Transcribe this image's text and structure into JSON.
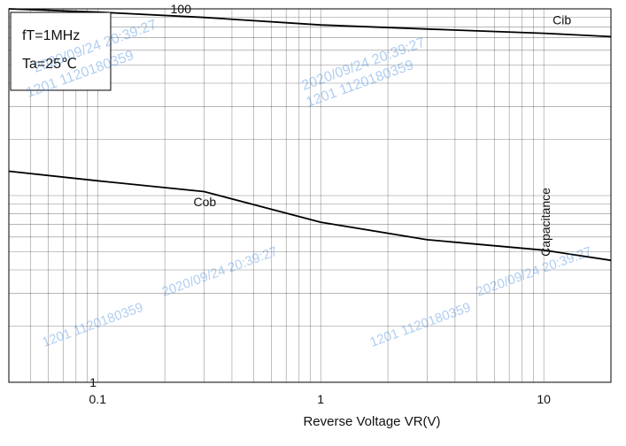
{
  "chart_data": {
    "type": "line",
    "title": "",
    "conditions": [
      "fT=1MHz",
      "Ta=25℃"
    ],
    "xlabel": "Reverse Voltage  VR(V)",
    "ylabel": "Capacitance",
    "xscale": "log",
    "yscale": "log",
    "xlim": [
      0.04,
      20
    ],
    "ylim": [
      1,
      100
    ],
    "x_ticks": [
      "0.1",
      "1",
      "10"
    ],
    "y_ticks": [
      "1",
      "100"
    ],
    "grid": true,
    "series": [
      {
        "name": "Cib",
        "x": [
          0.04,
          0.1,
          0.3,
          1,
          3,
          10,
          20
        ],
        "y": [
          100,
          96,
          90,
          82,
          78,
          74,
          71
        ]
      },
      {
        "name": "Cob",
        "x": [
          0.04,
          0.1,
          0.3,
          1,
          3,
          10,
          20
        ],
        "y": [
          13.5,
          12,
          10.5,
          7.2,
          5.8,
          5.1,
          4.5
        ]
      }
    ],
    "annotations": [
      "2020/09/24 20:39:27",
      "1201 1120180359"
    ],
    "colors": {
      "background": "#ffffff",
      "grid": "#000000",
      "curve": "#000000",
      "watermark": "#1e73d8"
    }
  }
}
